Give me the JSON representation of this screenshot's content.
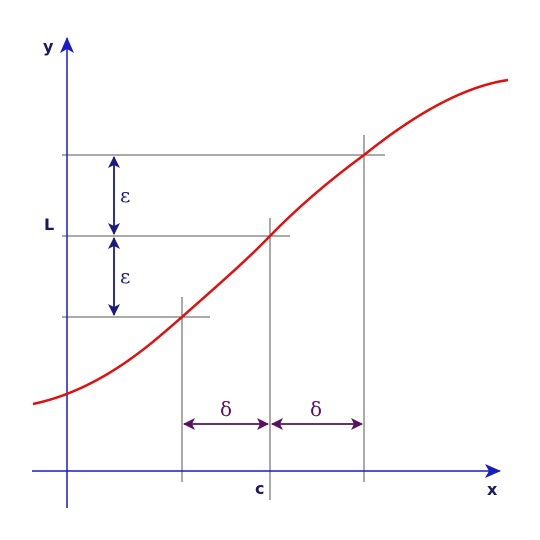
{
  "labels": {
    "x_axis": "x",
    "y_axis": "y",
    "L": "L",
    "c": "c",
    "epsilon_upper": "ε",
    "epsilon_lower": "ε",
    "delta_left": "δ",
    "delta_right": "δ"
  },
  "colors": {
    "axis": "#1a1ac8",
    "curve": "#e01010",
    "guide": "#555555",
    "epsilon": "#1a1a80",
    "delta": "#5a1060",
    "label": "#1a1a60"
  }
}
